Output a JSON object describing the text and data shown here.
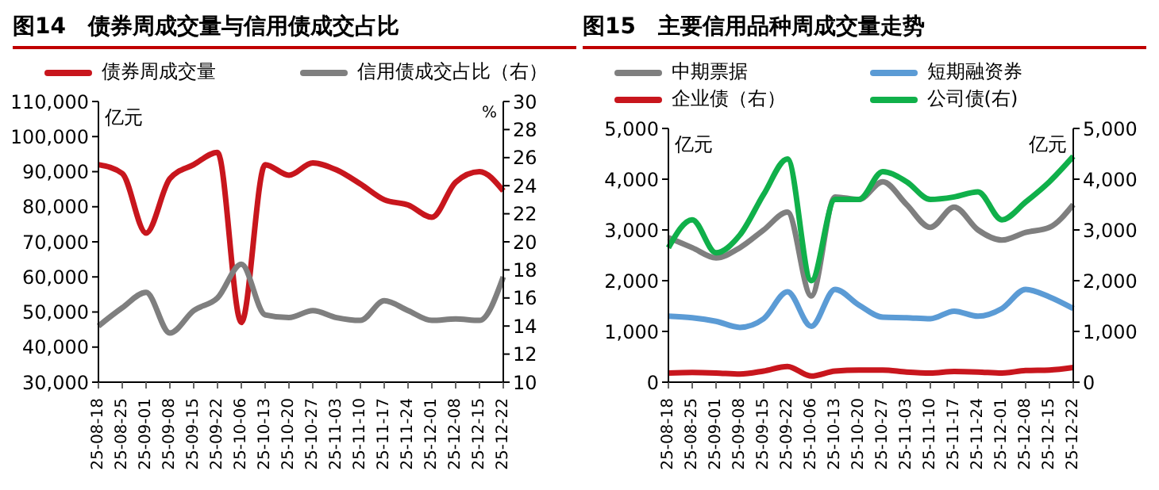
{
  "chart_data": [
    {
      "type": "line",
      "title": "图14　债券周成交量与信用债成交占比",
      "categories": [
        "25-08-18",
        "25-08-25",
        "25-09-01",
        "25-09-08",
        "25-09-15",
        "25-09-22",
        "25-10-06",
        "25-10-13",
        "25-10-20",
        "25-10-27",
        "25-11-03",
        "25-11-10",
        "25-11-17",
        "25-11-24",
        "25-12-01",
        "25-12-08",
        "25-12-15",
        "25-12-22"
      ],
      "series": [
        {
          "name": "债券周成交量",
          "color": "#c8161d",
          "values": [
            92000,
            89500,
            72500,
            88000,
            92000,
            95500,
            47000,
            92000,
            89000,
            92500,
            90500,
            86500,
            82000,
            80500,
            77000,
            87000,
            90000,
            84500
          ]
        },
        {
          "name": "信用债成交占比（右）",
          "color": "#7f7f7f",
          "axis": "y2",
          "values": [
            14,
            15.3,
            16.4,
            13.5,
            15.1,
            16,
            18.4,
            14.8,
            14.6,
            15.1,
            14.6,
            14.4,
            15.8,
            15.1,
            14.4,
            14.5,
            14.4,
            17.5
          ]
        }
      ],
      "ylim": [
        30000,
        110000
      ],
      "yticks": [
        {
          "value": 30000,
          "label": "30,000"
        },
        {
          "value": 40000,
          "label": "40,000"
        },
        {
          "value": 50000,
          "label": "50,000"
        },
        {
          "value": 60000,
          "label": "60,000"
        },
        {
          "value": 70000,
          "label": "70,000"
        },
        {
          "value": 80000,
          "label": "80,000"
        },
        {
          "value": 90000,
          "label": "90,000"
        },
        {
          "value": 100000,
          "label": "100,000"
        },
        {
          "value": 110000,
          "label": "110,000"
        }
      ],
      "y2lim": [
        10,
        30
      ],
      "y2ticks": [
        10,
        12,
        14,
        16,
        18,
        20,
        22,
        24,
        26,
        28,
        30
      ],
      "annotations": [
        "亿元",
        "%"
      ],
      "legend": "top",
      "grid": false
    },
    {
      "type": "line",
      "title": "图15　主要信用品种周成交量走势",
      "categories": [
        "25-08-18",
        "25-08-25",
        "25-09-01",
        "25-09-08",
        "25-09-15",
        "25-09-22",
        "25-10-06",
        "25-10-13",
        "25-10-20",
        "25-10-27",
        "25-11-03",
        "25-11-10",
        "25-11-17",
        "25-11-24",
        "25-12-01",
        "25-12-08",
        "25-12-15",
        "25-12-22"
      ],
      "series": [
        {
          "name": "中期票据",
          "color": "#7f7f7f",
          "values": [
            2850,
            2650,
            2450,
            2650,
            3000,
            3350,
            1700,
            3650,
            3600,
            3950,
            3500,
            3050,
            3450,
            3000,
            2800,
            2950,
            3050,
            3500
          ]
        },
        {
          "name": "短期融资券",
          "color": "#5b9bd5",
          "values": [
            1300,
            1270,
            1200,
            1080,
            1250,
            1780,
            1100,
            1830,
            1520,
            1280,
            1270,
            1250,
            1400,
            1300,
            1450,
            1830,
            1680,
            1450
          ]
        },
        {
          "name": "企业债（右）",
          "color": "#c8161d",
          "axis": "y2",
          "values": [
            180,
            190,
            180,
            160,
            220,
            310,
            120,
            220,
            240,
            240,
            200,
            180,
            210,
            200,
            180,
            230,
            240,
            290
          ]
        },
        {
          "name": "公司债(右)",
          "color": "#10b04a",
          "axis": "y2",
          "values": [
            2650,
            3200,
            2550,
            2900,
            3700,
            4400,
            2000,
            3600,
            3600,
            4150,
            3950,
            3600,
            3650,
            3750,
            3200,
            3550,
            3950,
            4450
          ]
        }
      ],
      "ylim": [
        0,
        5000
      ],
      "yticks": [
        0,
        {
          "value": 1000,
          "label": "1,000"
        },
        {
          "value": 2000,
          "label": "2,000"
        },
        {
          "value": 3000,
          "label": "3,000"
        },
        {
          "value": 4000,
          "label": "4,000"
        },
        {
          "value": 5000,
          "label": "5,000"
        }
      ],
      "y2lim": [
        0,
        5000
      ],
      "y2ticks": [
        0,
        {
          "value": 1000,
          "label": "1,000"
        },
        {
          "value": 2000,
          "label": "2,000"
        },
        {
          "value": 3000,
          "label": "3,000"
        },
        {
          "value": 4000,
          "label": "4,000"
        },
        {
          "value": 5000,
          "label": "5,000"
        }
      ],
      "annotations": [
        "亿元",
        "亿元"
      ],
      "legend": "top",
      "grid": false
    }
  ]
}
